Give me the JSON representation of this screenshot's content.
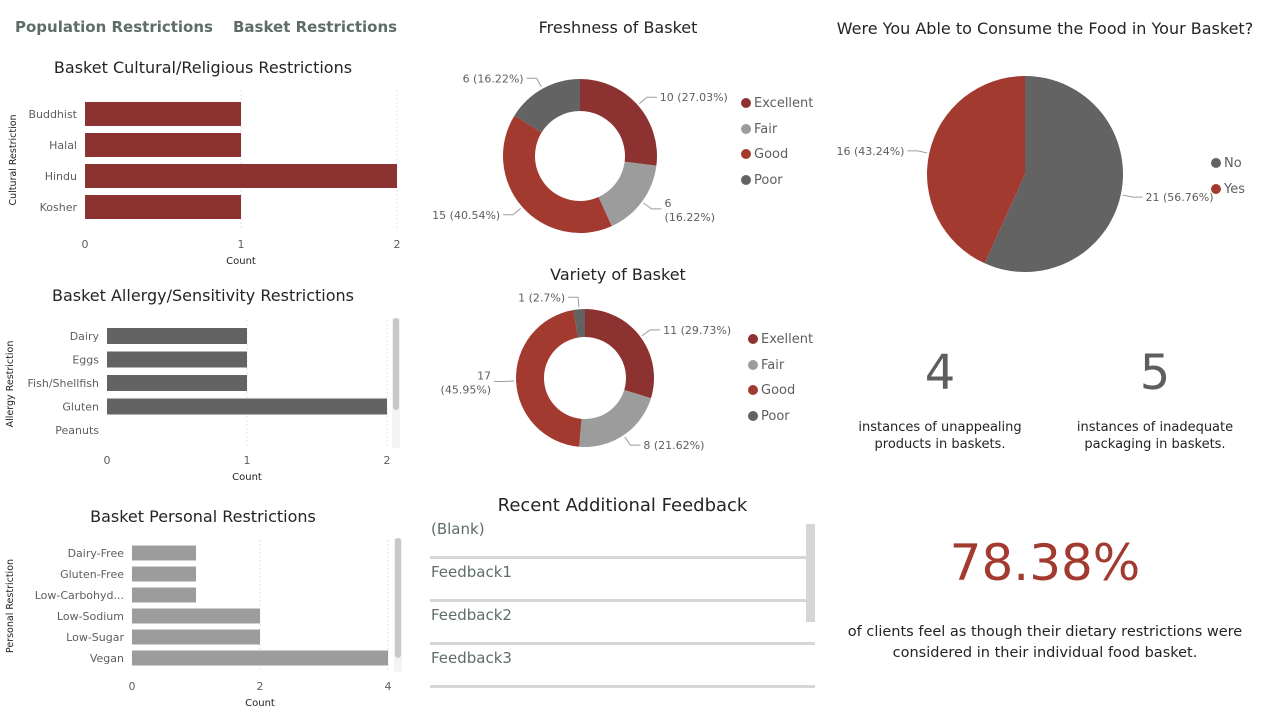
{
  "nav": {
    "population": "Population Restrictions",
    "basket": "Basket Restrictions"
  },
  "colors": {
    "dark_red": "#8c3331",
    "red": "#a33a2f",
    "dark_gray": "#636363",
    "gray": "#9c9c9c",
    "accent_text": "#a33a2f"
  },
  "cultural": {
    "title": "Basket Cultural/Religious Restrictions",
    "ylabel": "Cultural Restriction",
    "xlabel": "Count"
  },
  "allergy": {
    "title": "Basket Allergy/Sensitivity Restrictions",
    "ylabel": "Allergy Restriction",
    "xlabel": "Count"
  },
  "personal": {
    "title": "Basket Personal Restrictions",
    "ylabel": "Personal Restriction",
    "xlabel": "Count"
  },
  "freshness": {
    "title": "Freshness of Basket"
  },
  "variety": {
    "title": "Variety of Basket"
  },
  "consume": {
    "title": "Were You Able to Consume the Food in Your Basket?"
  },
  "kpis": {
    "unappealing": {
      "value": "4",
      "label_line1": "instances of unappealing",
      "label_line2": "products in baskets."
    },
    "packaging": {
      "value": "5",
      "label_line1": "instances of inadequate",
      "label_line2": "packaging in baskets."
    },
    "considered": {
      "value": "78.38%",
      "label_line1": "of clients feel as though their dietary restrictions were",
      "label_line2": "considered in their individual food basket."
    }
  },
  "feedback": {
    "title": "Recent Additional Feedback",
    "items": [
      "(Blank)",
      "Feedback1",
      "Feedback2",
      "Feedback3"
    ]
  },
  "chart_data": [
    {
      "type": "bar",
      "title": "Basket Cultural/Religious Restrictions",
      "ylabel": "Cultural Restriction",
      "xlabel": "Count",
      "categories": [
        "Buddhist",
        "Halal",
        "Hindu",
        "Kosher"
      ],
      "values": [
        1,
        1,
        2,
        1
      ],
      "xlim": [
        0,
        2
      ],
      "ticks": [
        "0",
        "1",
        "2"
      ],
      "color": "#8c3331"
    },
    {
      "type": "bar",
      "title": "Basket Allergy/Sensitivity Restrictions",
      "ylabel": "Allergy Restriction",
      "xlabel": "Count",
      "categories": [
        "Dairy",
        "Eggs",
        "Fish/Shellfish",
        "Gluten",
        "Peanuts"
      ],
      "values": [
        1,
        1,
        1,
        2,
        null
      ],
      "xlim": [
        0,
        2
      ],
      "ticks": [
        "0",
        "1",
        "2"
      ],
      "color": "#636363"
    },
    {
      "type": "bar",
      "title": "Basket Personal Restrictions",
      "ylabel": "Personal Restriction",
      "xlabel": "Count",
      "categories": [
        "Dairy-Free",
        "Gluten-Free",
        "Low-Carbohyd...",
        "Low-Sodium",
        "Low-Sugar",
        "Vegan"
      ],
      "values": [
        1,
        1,
        1,
        2,
        2,
        4
      ],
      "xlim": [
        0,
        4
      ],
      "ticks": [
        "0",
        "2",
        "4"
      ],
      "color": "#9c9c9c"
    },
    {
      "type": "pie",
      "title": "Freshness of Basket",
      "donut": true,
      "legend": [
        "Excellent",
        "Fair",
        "Good",
        "Poor"
      ],
      "slices": [
        {
          "name": "Excellent",
          "value": 10,
          "label": "10 (27.03%)",
          "color": "#8c3331"
        },
        {
          "name": "Fair",
          "value": 6,
          "label_lines": [
            "6",
            "(16.22%)"
          ],
          "color": "#9c9c9c"
        },
        {
          "name": "Good",
          "value": 15,
          "label": "15 (40.54%)",
          "color": "#a33a2f"
        },
        {
          "name": "Poor",
          "value": 6,
          "label": "6 (16.22%)",
          "color": "#636363"
        }
      ]
    },
    {
      "type": "pie",
      "title": "Variety of Basket",
      "donut": true,
      "legend": [
        "Exellent",
        "Fair",
        "Good",
        "Poor"
      ],
      "slices": [
        {
          "name": "Exellent",
          "value": 11,
          "label": "11 (29.73%)",
          "color": "#8c3331"
        },
        {
          "name": "Fair",
          "value": 8,
          "label": "8 (21.62%)",
          "color": "#9c9c9c"
        },
        {
          "name": "Good",
          "value": 17,
          "label_lines": [
            "17",
            "(45.95%)"
          ],
          "color": "#a33a2f"
        },
        {
          "name": "Poor",
          "value": 1,
          "label": "1 (2.7%)",
          "color": "#636363"
        }
      ]
    },
    {
      "type": "pie",
      "title": "Were You Able to Consume the Food in Your Basket?",
      "donut": false,
      "legend": [
        "No",
        "Yes"
      ],
      "slices": [
        {
          "name": "No",
          "value": 21,
          "label": "21 (56.76%)",
          "color": "#636363"
        },
        {
          "name": "Yes",
          "value": 16,
          "label": "16 (43.24%)",
          "color": "#a33a2f"
        }
      ]
    }
  ]
}
